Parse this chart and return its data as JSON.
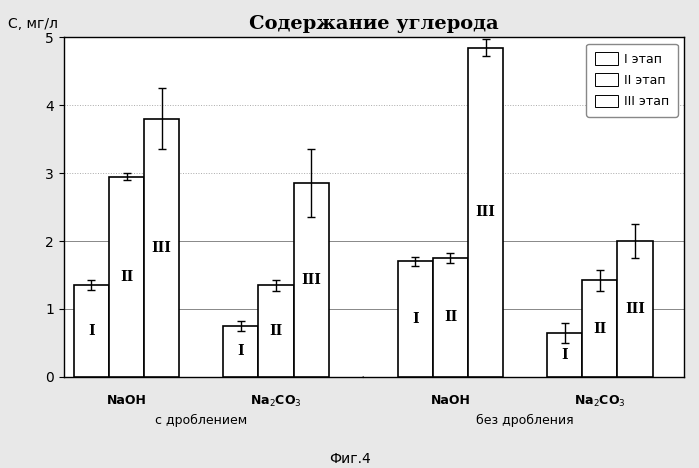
{
  "title": "Содержание углерода",
  "ylabel": "С, мг/л",
  "figcaption": "Фиг.4",
  "ylim": [
    0,
    5
  ],
  "yticks": [
    0,
    1,
    2,
    3,
    4,
    5
  ],
  "groups": [
    {
      "xlabel_reagent": "NaOH",
      "bars": [
        1.35,
        2.95,
        3.8
      ],
      "errors": [
        0.07,
        0.05,
        0.45
      ]
    },
    {
      "xlabel_reagent": "Na$_2$CO$_3$",
      "bars": [
        0.75,
        1.35,
        2.85
      ],
      "errors": [
        0.07,
        0.08,
        0.5
      ]
    },
    {
      "xlabel_reagent": "NaOH",
      "bars": [
        1.7,
        1.75,
        4.85
      ],
      "errors": [
        0.07,
        0.07,
        0.12
      ]
    },
    {
      "xlabel_reagent": "Na$_2$CO$_3$",
      "bars": [
        0.65,
        1.42,
        2.0
      ],
      "errors": [
        0.15,
        0.15,
        0.25
      ]
    }
  ],
  "section_labels": [
    "с дроблением",
    "без дробления"
  ],
  "stage_labels": [
    "I",
    "II",
    "III"
  ],
  "legend_labels": [
    "I этап",
    "II этап",
    "III этап"
  ],
  "bar_width": 0.28,
  "bar_color": "#ffffff",
  "bar_edgecolor": "#000000",
  "background_color": "#e8e8e8",
  "plot_bg_color": "#ffffff"
}
